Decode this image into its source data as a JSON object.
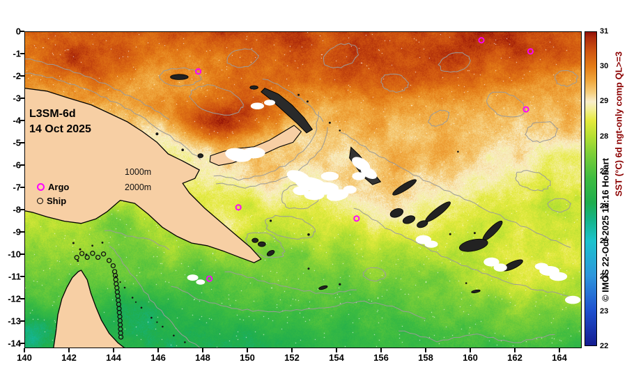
{
  "map": {
    "product_label": "L3SM-6d",
    "date_label": "14 Oct 2025",
    "legend": {
      "contour_1000": "1000m",
      "contour_2000": "2000m",
      "argo": "Argo",
      "ship": "Ship"
    },
    "argo_color": "#ff00ff",
    "ship_color": "#000000",
    "land_color": "#f7cfa4"
  },
  "right_margin": {
    "copyright": "© IMOS 22-Oct-2025 12:16 Hobart",
    "colorbar_label": "SST (°C) 6d ngt-only comp QL>=3"
  },
  "chart_data": {
    "type": "heatmap",
    "title": "L3SM-6d 14 Oct 2025",
    "x_axis": {
      "range": [
        140,
        165
      ],
      "ticks": [
        140,
        142,
        144,
        146,
        148,
        150,
        152,
        154,
        156,
        158,
        160,
        162,
        164
      ]
    },
    "y_axis": {
      "range": [
        -14.22,
        0
      ],
      "ticks": [
        0,
        -1,
        -2,
        -3,
        -4,
        -5,
        -6,
        -7,
        -8,
        -9,
        -10,
        -11,
        -12,
        -13,
        -14
      ]
    },
    "colorbar": {
      "label": "SST (°C) 6d ngt-only comp QL>=3",
      "range": [
        22,
        31
      ],
      "ticks": [
        31,
        30,
        29,
        28,
        27,
        26,
        25,
        24,
        23,
        22
      ],
      "stops": [
        {
          "t": 22.0,
          "c": "#141c90"
        },
        {
          "t": 23.0,
          "c": "#1e50cf"
        },
        {
          "t": 24.0,
          "c": "#2e96dc"
        },
        {
          "t": 25.0,
          "c": "#1cc3cd"
        },
        {
          "t": 25.6,
          "c": "#15b489"
        },
        {
          "t": 26.1,
          "c": "#1fae4e"
        },
        {
          "t": 26.8,
          "c": "#3dbc41"
        },
        {
          "t": 27.5,
          "c": "#7ccf38"
        },
        {
          "t": 28.0,
          "c": "#b5e032"
        },
        {
          "t": 28.45,
          "c": "#e4ea3c"
        },
        {
          "t": 28.75,
          "c": "#f2ee8e"
        },
        {
          "t": 29.0,
          "c": "#f9eecb"
        },
        {
          "t": 29.25,
          "c": "#f6cf7e"
        },
        {
          "t": 29.6,
          "c": "#f0a83e"
        },
        {
          "t": 30.0,
          "c": "#e47d17"
        },
        {
          "t": 30.45,
          "c": "#cf5410"
        },
        {
          "t": 30.85,
          "c": "#ad2a0b"
        },
        {
          "t": 31.0,
          "c": "#8f1007"
        }
      ]
    },
    "field": {
      "base_top": 30.3,
      "base_bottom": 26.45,
      "noise_amp": 0.45,
      "features": [
        {
          "name": "bismarck-warm-pool",
          "lon": 148.8,
          "lat": -3.9,
          "slon": 2.2,
          "slat": 1.05,
          "amp": 1.5
        },
        {
          "name": "nw-coast-warm",
          "lon": 142.5,
          "lat": -1.6,
          "slon": 2.0,
          "slat": 1.2,
          "amp": 0.6
        },
        {
          "name": "north-band-warm",
          "lon": 156.0,
          "lat": -1.5,
          "slon": 7.5,
          "slat": 2.6,
          "amp": 0.5
        },
        {
          "name": "ne-warm-patch",
          "lon": 161.5,
          "lat": -0.8,
          "slon": 2.0,
          "slat": 1.0,
          "amp": 0.3
        },
        {
          "name": "solomon-sea-warm",
          "lon": 156.0,
          "lat": -7.8,
          "slon": 3.2,
          "slat": 2.0,
          "amp": 0.85
        },
        {
          "name": "solomon-ne-warm",
          "lon": 158.5,
          "lat": -5.5,
          "slon": 3.5,
          "slat": 2.0,
          "amp": 0.45
        },
        {
          "name": "new-britain-south-warm",
          "lon": 150.8,
          "lat": -6.3,
          "slon": 2.0,
          "slat": 1.4,
          "amp": 0.65
        },
        {
          "name": "papua-tail-warm",
          "lon": 149.3,
          "lat": -8.8,
          "slon": 1.4,
          "slat": 0.8,
          "amp": 0.8
        },
        {
          "name": "gulf-of-papua-cool",
          "lon": 144.2,
          "lat": -8.55,
          "slon": 1.1,
          "slat": 0.7,
          "amp": -0.55
        },
        {
          "name": "gbr-lagoon-cool",
          "lon": 145.3,
          "lat": -12.9,
          "slon": 1.9,
          "slat": 1.5,
          "amp": -0.85
        },
        {
          "name": "carpentaria-cool",
          "lon": 140.4,
          "lat": -13.4,
          "slon": 1.1,
          "slat": 0.9,
          "amp": -0.9
        },
        {
          "name": "coral-sea-cool",
          "lon": 149.5,
          "lat": -13.8,
          "slon": 3.0,
          "slat": 1.2,
          "amp": -0.35
        },
        {
          "name": "east-south-warm",
          "lon": 163.0,
          "lat": -11.2,
          "slon": 4.0,
          "slat": 2.6,
          "amp": 0.95
        }
      ]
    },
    "argo_floats": [
      {
        "lon": 160.5,
        "lat": -0.4
      },
      {
        "lon": 162.7,
        "lat": -0.9
      },
      {
        "lon": 162.5,
        "lat": -3.5
      },
      {
        "lon": 147.8,
        "lat": -1.8
      },
      {
        "lon": 149.6,
        "lat": -7.9
      },
      {
        "lon": 154.9,
        "lat": -8.4
      },
      {
        "lon": 148.3,
        "lat": -11.1
      }
    ],
    "ship_track": [
      [
        142.35,
        -10.15
      ],
      [
        142.58,
        -9.97
      ],
      [
        142.82,
        -10.14
      ],
      [
        143.06,
        -9.96
      ],
      [
        143.3,
        -10.14
      ],
      [
        143.55,
        -9.99
      ],
      [
        143.8,
        -10.28
      ],
      [
        143.98,
        -10.52
      ],
      [
        144.05,
        -10.78
      ],
      [
        144.08,
        -10.96
      ],
      [
        144.1,
        -11.14
      ],
      [
        144.12,
        -11.33
      ],
      [
        144.15,
        -11.51
      ],
      [
        144.17,
        -11.7
      ],
      [
        144.19,
        -11.88
      ],
      [
        144.21,
        -12.07
      ],
      [
        144.23,
        -12.25
      ],
      [
        144.25,
        -12.44
      ],
      [
        144.26,
        -12.62
      ],
      [
        144.28,
        -12.8
      ],
      [
        144.29,
        -12.99
      ],
      [
        144.3,
        -13.17
      ],
      [
        144.31,
        -13.36
      ],
      [
        144.32,
        -13.54
      ],
      [
        144.33,
        -13.72
      ]
    ]
  }
}
